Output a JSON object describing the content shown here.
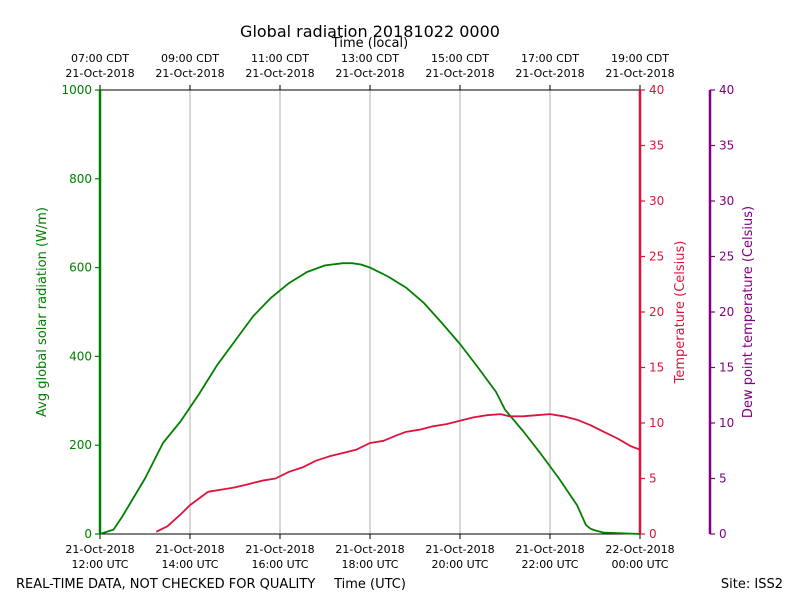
{
  "colors": {
    "radiation": "#008000",
    "temperature": "#dc143c",
    "dewpoint": "#800080",
    "grid": "#b0b0b0",
    "axis": "#000000"
  },
  "chart_data": {
    "type": "line",
    "title": "Global radiation 20181022 0000",
    "top_axis_label": "Time (local)",
    "xlabel": "Time (UTC)",
    "x_unit": "hours_utc",
    "xlim": [
      12,
      24
    ],
    "x_ticks_utc": [
      {
        "x": 12,
        "line1": "21-Oct-2018",
        "line2": "12:00 UTC"
      },
      {
        "x": 14,
        "line1": "21-Oct-2018",
        "line2": "14:00 UTC"
      },
      {
        "x": 16,
        "line1": "21-Oct-2018",
        "line2": "16:00 UTC"
      },
      {
        "x": 18,
        "line1": "21-Oct-2018",
        "line2": "18:00 UTC"
      },
      {
        "x": 20,
        "line1": "21-Oct-2018",
        "line2": "20:00 UTC"
      },
      {
        "x": 22,
        "line1": "21-Oct-2018",
        "line2": "22:00 UTC"
      },
      {
        "x": 24,
        "line1": "22-Oct-2018",
        "line2": "00:00 UTC"
      }
    ],
    "x_ticks_local": [
      {
        "x": 12,
        "line1": "07:00 CDT",
        "line2": "21-Oct-2018"
      },
      {
        "x": 14,
        "line1": "09:00 CDT",
        "line2": "21-Oct-2018"
      },
      {
        "x": 16,
        "line1": "11:00 CDT",
        "line2": "21-Oct-2018"
      },
      {
        "x": 18,
        "line1": "13:00 CDT",
        "line2": "21-Oct-2018"
      },
      {
        "x": 20,
        "line1": "15:00 CDT",
        "line2": "21-Oct-2018"
      },
      {
        "x": 22,
        "line1": "17:00 CDT",
        "line2": "21-Oct-2018"
      },
      {
        "x": 24,
        "line1": "19:00 CDT",
        "line2": "21-Oct-2018"
      }
    ],
    "y_left": {
      "label": "Avg global solar radiation (W/m)",
      "ylim": [
        0,
        1000
      ],
      "ticks": [
        "0",
        "200",
        "400",
        "600",
        "800",
        "1000"
      ]
    },
    "y_right1": {
      "label": "Temperature (Celsius)",
      "ylim": [
        0,
        40
      ],
      "ticks": [
        "0",
        "5",
        "10",
        "15",
        "20",
        "25",
        "30",
        "35",
        "40"
      ]
    },
    "y_right2": {
      "label": "Dew point temperature (Celsius)",
      "ylim": [
        0,
        40
      ],
      "ticks": [
        "0",
        "5",
        "10",
        "15",
        "20",
        "25",
        "30",
        "35",
        "40"
      ]
    },
    "series": [
      {
        "name": "Avg global solar radiation",
        "axis": "left",
        "x": [
          12.0,
          12.3,
          12.5,
          13.0,
          13.4,
          13.8,
          14.2,
          14.6,
          15.0,
          15.4,
          15.8,
          16.2,
          16.6,
          17.0,
          17.4,
          17.6,
          17.8,
          18.0,
          18.4,
          18.8,
          19.2,
          19.6,
          20.0,
          20.4,
          20.8,
          21.0,
          21.4,
          21.8,
          22.2,
          22.6,
          22.8,
          22.9,
          23.0,
          23.2,
          23.5,
          23.8,
          24.0
        ],
        "values": [
          0,
          10,
          40,
          125,
          205,
          255,
          315,
          380,
          435,
          490,
          532,
          565,
          590,
          605,
          610,
          610,
          607,
          600,
          580,
          555,
          520,
          475,
          428,
          375,
          320,
          280,
          232,
          180,
          125,
          65,
          20,
          12,
          8,
          3,
          2,
          1,
          0
        ]
      },
      {
        "name": "Temperature",
        "axis": "right1",
        "x": [
          13.25,
          13.5,
          13.8,
          14.0,
          14.2,
          14.4,
          14.7,
          15.0,
          15.3,
          15.6,
          15.9,
          16.2,
          16.5,
          16.8,
          17.1,
          17.4,
          17.7,
          18.0,
          18.3,
          18.6,
          18.8,
          19.1,
          19.4,
          19.7,
          20.0,
          20.3,
          20.6,
          20.9,
          21.1,
          21.4,
          21.7,
          22.0,
          22.3,
          22.6,
          22.9,
          23.2,
          23.5,
          23.8,
          24.0
        ],
        "values": [
          0.2,
          0.7,
          1.8,
          2.6,
          3.2,
          3.8,
          4.0,
          4.2,
          4.5,
          4.8,
          5.0,
          5.6,
          6.0,
          6.6,
          7.0,
          7.3,
          7.6,
          8.2,
          8.4,
          8.9,
          9.2,
          9.4,
          9.7,
          9.9,
          10.2,
          10.5,
          10.7,
          10.8,
          10.6,
          10.6,
          10.7,
          10.8,
          10.6,
          10.3,
          9.8,
          9.2,
          8.6,
          7.9,
          7.6
        ]
      }
    ]
  },
  "footer": {
    "left": "REAL-TIME DATA, NOT CHECKED FOR QUALITY",
    "right": "Site: ISS2"
  }
}
